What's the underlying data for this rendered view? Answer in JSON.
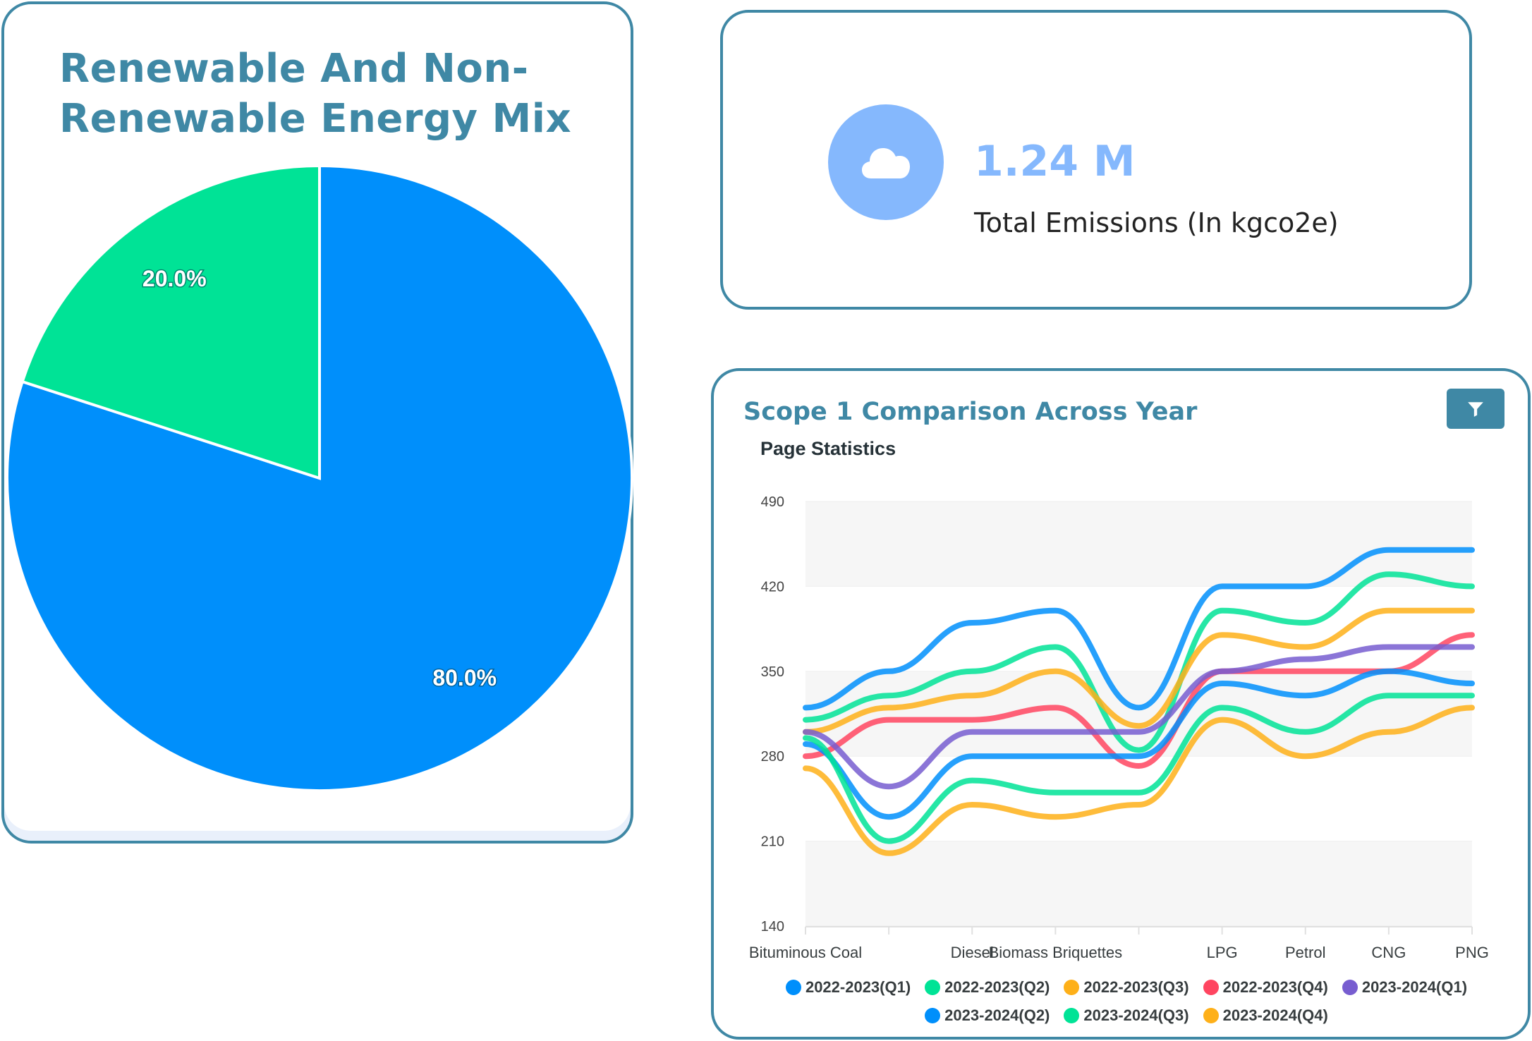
{
  "pie_card": {
    "title": "Renewable And Non-Renewable Energy Mix"
  },
  "emissions_card": {
    "icon": "cloud-icon",
    "value": "1.24 M",
    "label": "Total Emissions (In kgco2e)"
  },
  "line_card": {
    "title": "Scope 1 Comparison Across Year",
    "filter_icon": "filter-icon"
  },
  "colors": {
    "accent": "#3f88a5",
    "emissions_circle": "#85b8fd",
    "pie_blue": "#008ffb",
    "pie_green": "#00e396"
  },
  "chart_data": [
    {
      "type": "pie",
      "title": "Renewable And Non-Renewable Energy Mix",
      "slices": [
        {
          "name": "Non-Renewable",
          "value": 80.0,
          "label": "80.0%",
          "color": "#008ffb"
        },
        {
          "name": "Renewable",
          "value": 20.0,
          "label": "20.0%",
          "color": "#00e396"
        }
      ]
    },
    {
      "type": "line",
      "title": "Page Statistics",
      "curve": "smooth",
      "categories": [
        "Bituminous Coal",
        "",
        "Diesel",
        "Biomass Briquettes",
        "",
        "LPG",
        "Petrol",
        "CNG",
        "PNG"
      ],
      "yticks": [
        490,
        420,
        350,
        280,
        210,
        140
      ],
      "ylim": [
        140,
        490
      ],
      "grid": "horizontal bands",
      "legend": "bottom",
      "series": [
        {
          "name": "2022-2023(Q1)",
          "color": "#008ffb",
          "values": [
            320,
            350,
            390,
            400,
            320,
            420,
            420,
            450,
            450
          ]
        },
        {
          "name": "2022-2023(Q2)",
          "color": "#00e396",
          "values": [
            310,
            330,
            350,
            370,
            285,
            400,
            390,
            430,
            420
          ]
        },
        {
          "name": "2022-2023(Q3)",
          "color": "#feb019",
          "values": [
            300,
            320,
            330,
            350,
            305,
            380,
            370,
            400,
            400
          ]
        },
        {
          "name": "2022-2023(Q4)",
          "color": "#ff4560",
          "values": [
            280,
            310,
            310,
            320,
            272,
            350,
            350,
            350,
            380
          ]
        },
        {
          "name": "2023-2024(Q1)",
          "color": "#775dd0",
          "values": [
            300,
            255,
            300,
            300,
            300,
            350,
            360,
            370,
            370
          ]
        },
        {
          "name": "2023-2024(Q2)",
          "color": "#008ffb",
          "values": [
            290,
            230,
            280,
            280,
            280,
            340,
            330,
            350,
            340
          ]
        },
        {
          "name": "2023-2024(Q3)",
          "color": "#00e396",
          "values": [
            295,
            210,
            260,
            250,
            250,
            320,
            300,
            330,
            330
          ]
        },
        {
          "name": "2023-2024(Q4)",
          "color": "#feb019",
          "values": [
            270,
            200,
            240,
            230,
            240,
            310,
            280,
            300,
            320
          ]
        }
      ]
    }
  ]
}
